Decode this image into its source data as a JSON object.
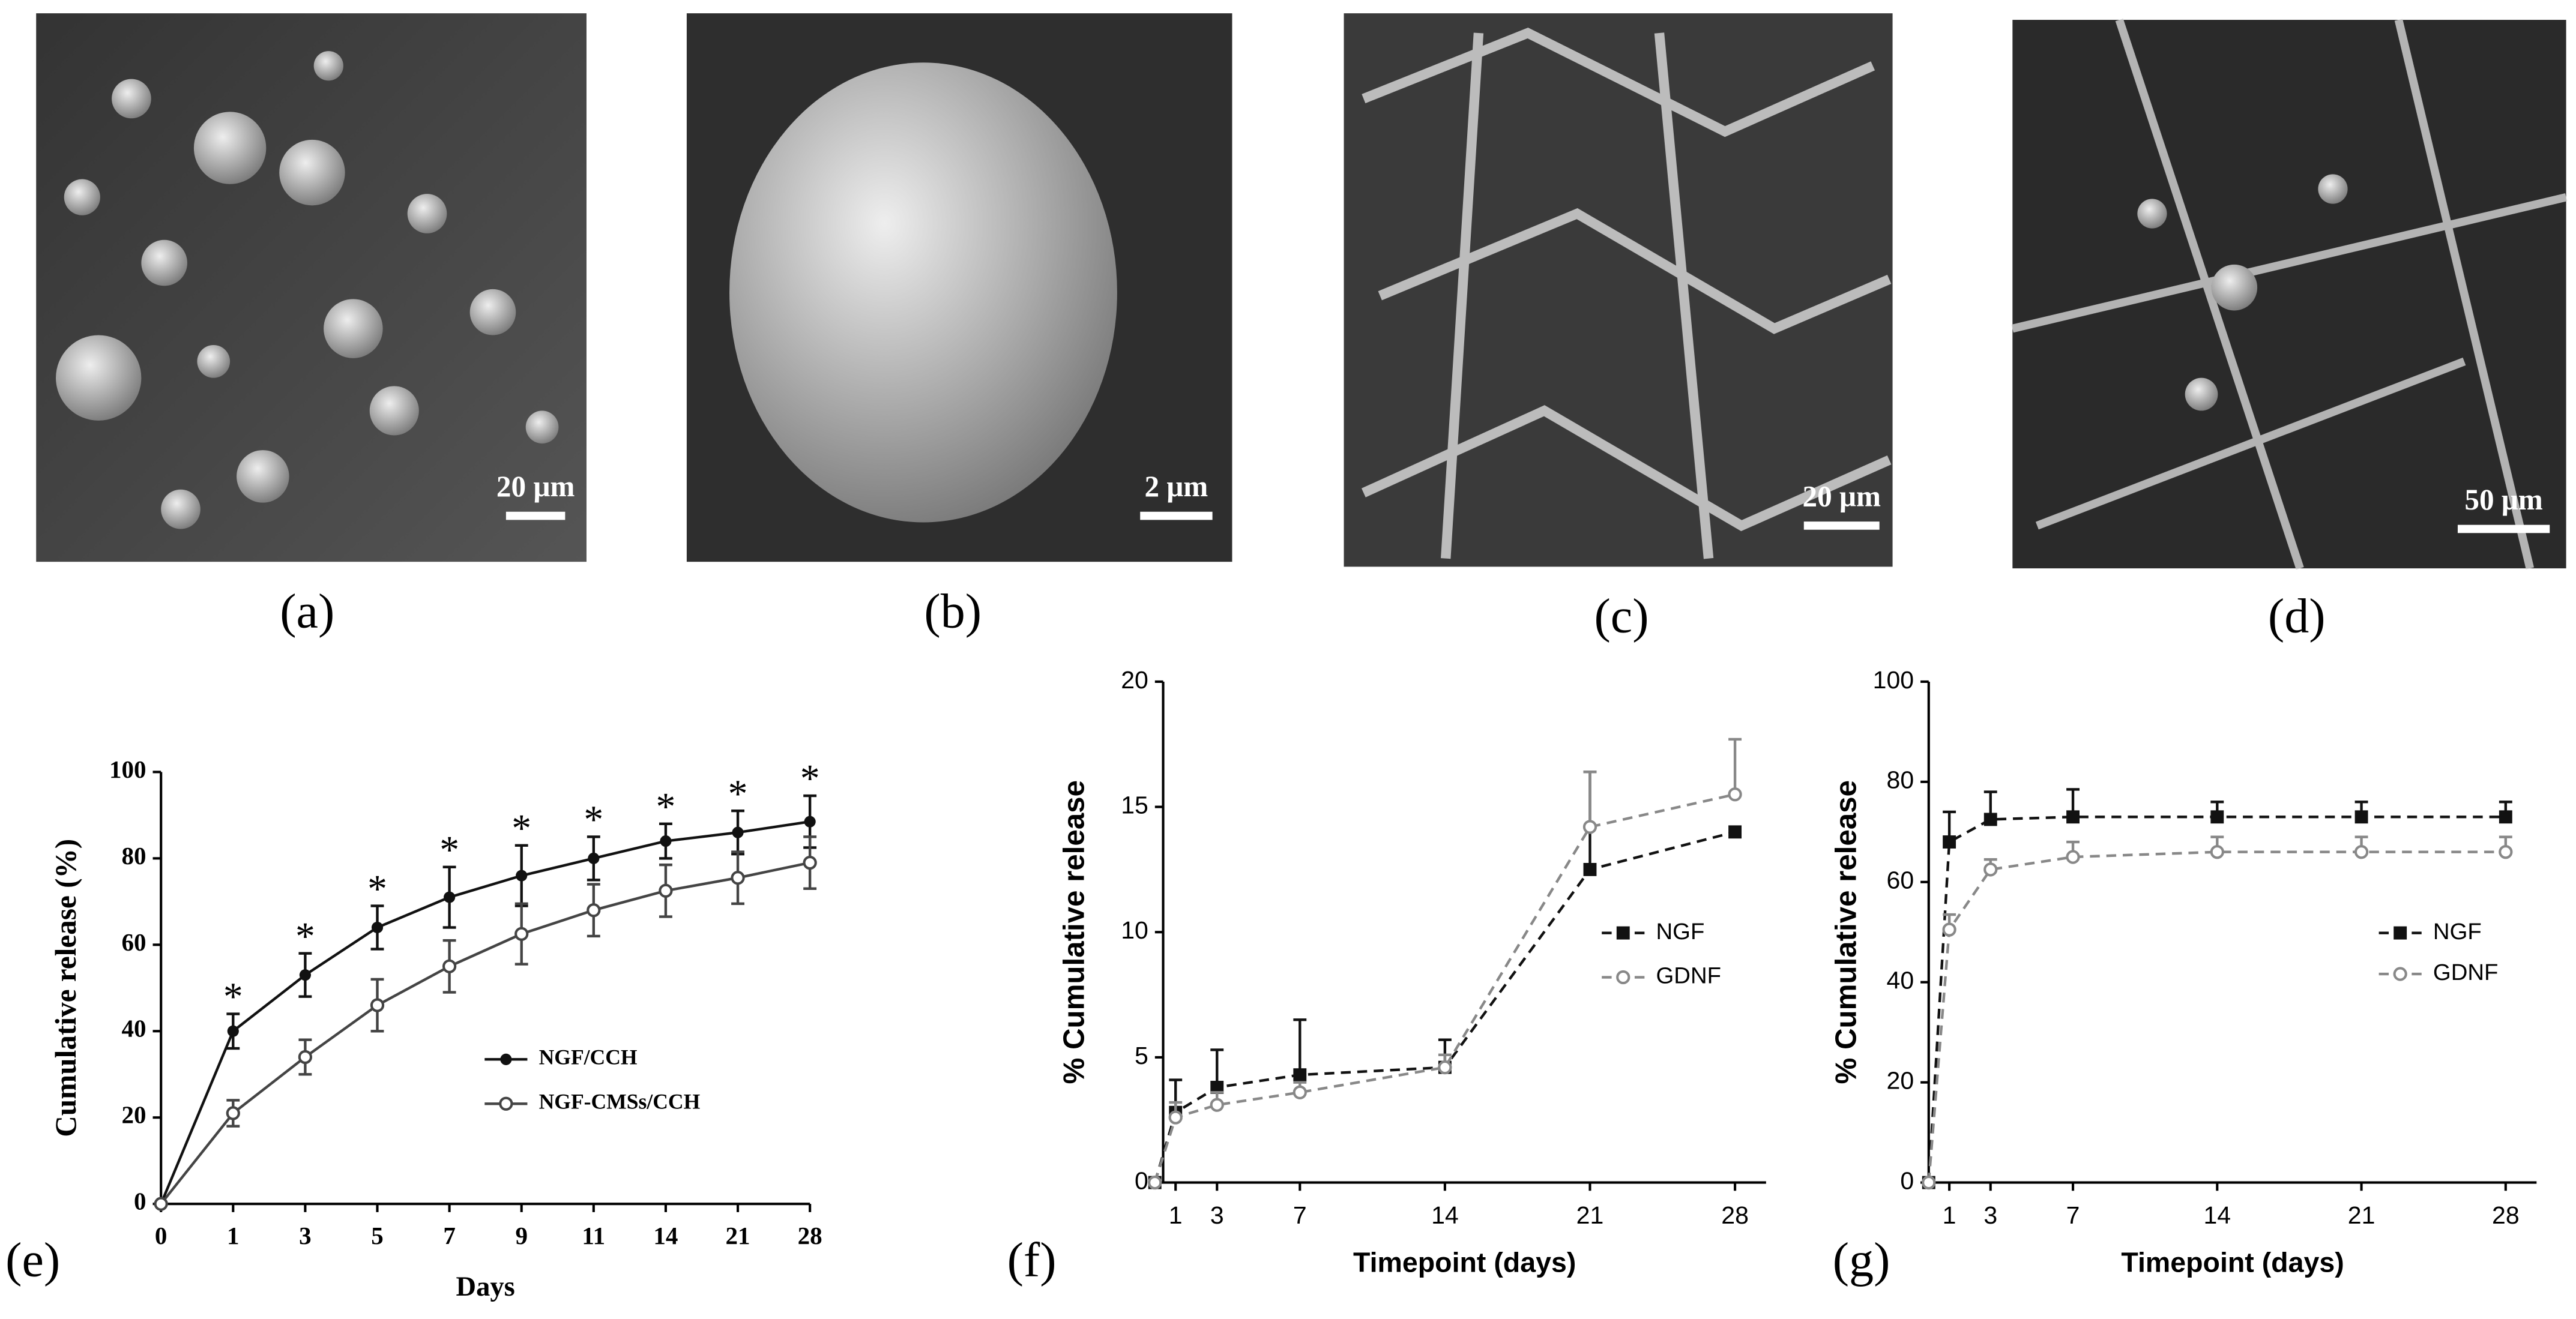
{
  "panels": [
    {
      "label": "(a)",
      "scale_bar": "20 μm"
    },
    {
      "label": "(b)",
      "scale_bar": "2 μm"
    },
    {
      "label": "(c)",
      "scale_bar": "20 μm"
    },
    {
      "label": "(d)",
      "scale_bar": "50 μm"
    }
  ],
  "chart_data": [
    {
      "type": "line",
      "panel_label": "(e)",
      "xlabel": "Days",
      "ylabel": "Cumulative release (%)",
      "categories": [
        "0",
        "1",
        "3",
        "5",
        "7",
        "9",
        "11",
        "14",
        "21",
        "28"
      ],
      "ylim": [
        0,
        100
      ],
      "yticks": [
        0,
        20,
        40,
        60,
        80,
        100
      ],
      "line_style": "solid",
      "error_bars": "both",
      "series": [
        {
          "name": "NGF/CCH",
          "color": "#111111",
          "marker": "filled-circle",
          "values": [
            0,
            40,
            53,
            64,
            71,
            76,
            80,
            84,
            86,
            88.5
          ],
          "errors": [
            null,
            4,
            5,
            5,
            7,
            7,
            5,
            4,
            5,
            6
          ]
        },
        {
          "name": "NGF-CMSs/CCH",
          "color": "#444444",
          "marker": "open-circle",
          "values": [
            0,
            21,
            34,
            46,
            55,
            62.5,
            68,
            72.5,
            75.5,
            79
          ],
          "errors": [
            null,
            3,
            4,
            6,
            6,
            7,
            6,
            6,
            6,
            6
          ]
        }
      ],
      "significance_labels": [
        null,
        "*",
        "*",
        "*",
        "*",
        "*",
        "*",
        "*",
        "*",
        "*"
      ]
    },
    {
      "type": "line",
      "panel_label": "(f)",
      "xlabel": "Timepoint (days)",
      "ylabel": "% Cumulative release",
      "x": [
        0,
        1,
        3,
        7,
        14,
        21,
        28
      ],
      "xlim": [
        0.4,
        29.5
      ],
      "xticks": [
        1,
        3,
        7,
        14,
        21,
        28
      ],
      "ylim": [
        0,
        20
      ],
      "yticks": [
        0,
        5,
        10,
        15,
        20
      ],
      "line_style": "dashed",
      "error_bars": "up",
      "series": [
        {
          "name": "NGF",
          "color": "#111111",
          "marker": "filled-square",
          "values": [
            0,
            2.8,
            3.8,
            4.3,
            4.6,
            12.5,
            14
          ],
          "errors": [
            null,
            1.3,
            1.5,
            2.2,
            1.1,
            3.9,
            null
          ]
        },
        {
          "name": "GDNF",
          "color": "#888888",
          "marker": "open-circle",
          "values": [
            0,
            2.6,
            3.1,
            3.6,
            4.6,
            14.2,
            15.5
          ],
          "errors": [
            null,
            0.6,
            0.5,
            0.4,
            0.5,
            2.2,
            2.2
          ]
        }
      ]
    },
    {
      "type": "line",
      "panel_label": "(g)",
      "xlabel": "Timepoint (days)",
      "ylabel": "% Cumulative release",
      "x": [
        0,
        1,
        3,
        7,
        14,
        21,
        28
      ],
      "xlim": [
        0,
        29.5
      ],
      "xticks": [
        1,
        3,
        7,
        14,
        21,
        28
      ],
      "ylim": [
        0,
        100
      ],
      "yticks": [
        0,
        20,
        40,
        60,
        80,
        100
      ],
      "line_style": "dashed",
      "error_bars": "up",
      "series": [
        {
          "name": "NGF",
          "color": "#111111",
          "marker": "filled-square",
          "values": [
            0,
            68,
            72.5,
            73,
            73,
            73,
            73
          ],
          "errors": [
            null,
            6,
            5.5,
            5.5,
            3,
            3,
            3
          ]
        },
        {
          "name": "GDNF",
          "color": "#888888",
          "marker": "open-circle",
          "values": [
            0,
            50.5,
            62.5,
            65,
            66,
            66,
            66
          ],
          "errors": [
            null,
            3,
            2,
            3,
            3,
            3,
            3
          ]
        }
      ]
    }
  ]
}
